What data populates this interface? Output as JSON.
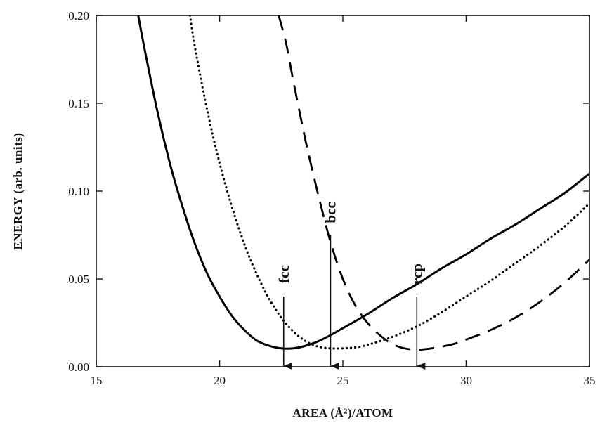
{
  "chart_data": {
    "type": "line",
    "title": "",
    "xlabel": "AREA (Å²)/ATOM",
    "ylabel": "ENERGY (arb. units)",
    "xlim": [
      15,
      35
    ],
    "ylim": [
      0.0,
      0.2
    ],
    "x_ticks": [
      15,
      20,
      25,
      30,
      35
    ],
    "x_tick_labels": [
      "15",
      "20",
      "25",
      "30",
      "35"
    ],
    "y_ticks": [
      0.0,
      0.05,
      0.1,
      0.15,
      0.2
    ],
    "y_tick_labels": [
      "0.00",
      "0.05",
      "0.10",
      "0.15",
      "0.20"
    ],
    "grid": false,
    "series": [
      {
        "line_style": "solid",
        "color": "#000000",
        "points": [
          [
            16.7,
            0.2
          ],
          [
            17.0,
            0.178
          ],
          [
            17.5,
            0.144
          ],
          [
            18.0,
            0.115
          ],
          [
            18.5,
            0.091
          ],
          [
            19.0,
            0.07
          ],
          [
            19.5,
            0.053
          ],
          [
            20.0,
            0.04
          ],
          [
            20.5,
            0.029
          ],
          [
            21.0,
            0.021
          ],
          [
            21.5,
            0.015
          ],
          [
            22.0,
            0.012
          ],
          [
            22.5,
            0.0105
          ],
          [
            23.0,
            0.0105
          ],
          [
            23.5,
            0.012
          ],
          [
            24.0,
            0.0145
          ],
          [
            24.5,
            0.018
          ],
          [
            25.0,
            0.022
          ],
          [
            26.0,
            0.03
          ],
          [
            27.0,
            0.039
          ],
          [
            28.0,
            0.047
          ],
          [
            29.0,
            0.056
          ],
          [
            30.0,
            0.064
          ],
          [
            31.0,
            0.073
          ],
          [
            32.0,
            0.081
          ],
          [
            33.0,
            0.09
          ],
          [
            34.0,
            0.099
          ],
          [
            35.0,
            0.11
          ]
        ]
      },
      {
        "line_style": "dotted",
        "color": "#000000",
        "points": [
          [
            18.8,
            0.2
          ],
          [
            19.0,
            0.182
          ],
          [
            19.5,
            0.146
          ],
          [
            20.0,
            0.116
          ],
          [
            20.5,
            0.091
          ],
          [
            21.0,
            0.07
          ],
          [
            21.5,
            0.053
          ],
          [
            22.0,
            0.039
          ],
          [
            22.5,
            0.028
          ],
          [
            23.0,
            0.02
          ],
          [
            23.5,
            0.0145
          ],
          [
            24.0,
            0.0115
          ],
          [
            24.5,
            0.0105
          ],
          [
            25.0,
            0.0105
          ],
          [
            25.5,
            0.011
          ],
          [
            26.0,
            0.0125
          ],
          [
            27.0,
            0.017
          ],
          [
            28.0,
            0.023
          ],
          [
            29.0,
            0.031
          ],
          [
            30.0,
            0.04
          ],
          [
            31.0,
            0.049
          ],
          [
            32.0,
            0.059
          ],
          [
            33.0,
            0.069
          ],
          [
            34.0,
            0.08
          ],
          [
            35.0,
            0.093
          ]
        ]
      },
      {
        "line_style": "dashed",
        "color": "#000000",
        "points": [
          [
            22.4,
            0.2
          ],
          [
            22.7,
            0.184
          ],
          [
            23.0,
            0.162
          ],
          [
            23.5,
            0.128
          ],
          [
            24.0,
            0.098
          ],
          [
            24.5,
            0.071
          ],
          [
            25.0,
            0.05
          ],
          [
            25.5,
            0.035
          ],
          [
            26.0,
            0.025
          ],
          [
            26.5,
            0.018
          ],
          [
            27.0,
            0.013
          ],
          [
            27.5,
            0.0105
          ],
          [
            28.0,
            0.0098
          ],
          [
            28.5,
            0.0103
          ],
          [
            29.0,
            0.0115
          ],
          [
            29.5,
            0.013
          ],
          [
            30.0,
            0.0155
          ],
          [
            31.0,
            0.021
          ],
          [
            32.0,
            0.028
          ],
          [
            33.0,
            0.037
          ],
          [
            34.0,
            0.048
          ],
          [
            35.0,
            0.061
          ]
        ]
      }
    ],
    "annotations": [
      {
        "label": "fcc",
        "x": 22.6,
        "y_from": 0.04,
        "y_to": 0.0
      },
      {
        "label": "bcc",
        "x": 24.5,
        "y_from": 0.075,
        "y_to": 0.0
      },
      {
        "label": "rcp",
        "x": 28.0,
        "y_from": 0.04,
        "y_to": 0.0
      }
    ]
  }
}
